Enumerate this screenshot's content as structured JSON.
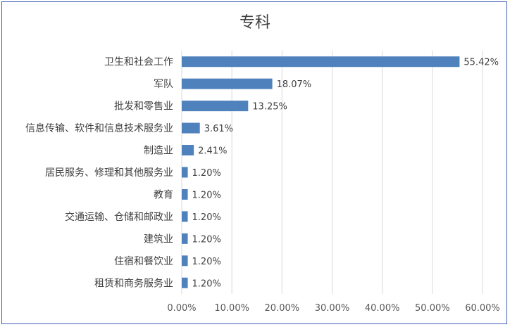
{
  "chart_data": {
    "type": "bar",
    "orientation": "horizontal",
    "title": "专科",
    "categories": [
      "卫生和社会工作",
      "军队",
      "批发和零售业",
      "信息传输、软件和信息技术服务业",
      "制造业",
      "居民服务、修理和其他服务业",
      "教育",
      "交通运输、仓储和邮政业",
      "建筑业",
      "住宿和餐饮业",
      "租赁和商务服务业"
    ],
    "values": [
      55.42,
      18.07,
      13.25,
      3.61,
      2.41,
      1.2,
      1.2,
      1.2,
      1.2,
      1.2,
      1.2
    ],
    "value_labels": [
      "55.42%",
      "18.07%",
      "13.25%",
      "3.61%",
      "2.41%",
      "1.20%",
      "1.20%",
      "1.20%",
      "1.20%",
      "1.20%",
      "1.20%"
    ],
    "xlim": [
      0,
      60
    ],
    "x_ticks": [
      "0.00%",
      "10.00%",
      "20.00%",
      "30.00%",
      "40.00%",
      "50.00%",
      "60.00%"
    ],
    "grid": "vertical",
    "legend": "none",
    "bar_color": "#4f81bd",
    "border_color": "#3f5fb8"
  }
}
